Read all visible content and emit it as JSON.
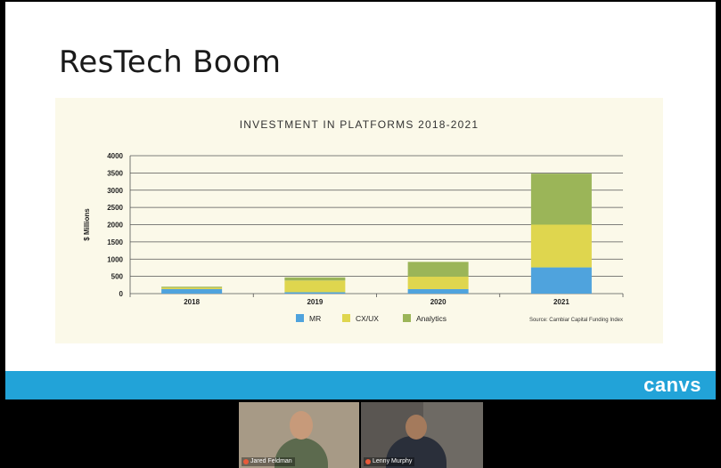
{
  "slide": {
    "title": "ResTech Boom",
    "brand": "canvs"
  },
  "chart_data": {
    "type": "bar",
    "stacked": true,
    "title": "INVESTMENT IN PLATFORMS 2018-2021",
    "xlabel": "",
    "ylabel": "$ Millions",
    "categories": [
      "2018",
      "2019",
      "2020",
      "2021"
    ],
    "ylim": [
      0,
      4000
    ],
    "yticks": [
      "0",
      "500",
      "1000",
      "1500",
      "2000",
      "2500",
      "3000",
      "3500",
      "4000"
    ],
    "grid": true,
    "legend_position": "bottom-left",
    "series": [
      {
        "name": "MR",
        "values": [
          130,
          40,
          130,
          760
        ],
        "color": "#4fa3dd"
      },
      {
        "name": "CX/UX",
        "values": [
          40,
          340,
          360,
          1240
        ],
        "color": "#dfd64e"
      },
      {
        "name": "Analytics",
        "values": [
          30,
          90,
          430,
          1480
        ],
        "color": "#9bb558"
      }
    ],
    "source": "Source: Cambiar Capital Funding Index"
  },
  "participants": [
    {
      "name": "Jared Feldman"
    },
    {
      "name": "Lenny Murphy"
    }
  ]
}
